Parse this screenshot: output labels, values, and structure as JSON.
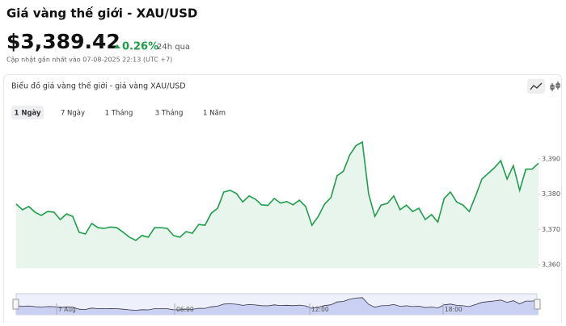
{
  "header": {
    "title": "Giá vàng thế giới - XAU/USD",
    "price": "$3,389.42",
    "change": "0.26%",
    "period": "24h qua",
    "updated": "Cập nhật gần nhất vào 07-08-2025 22:13 (UTC +7)"
  },
  "card": {
    "title": "Biểu đồ giá vàng thế giới - giá vàng XAU/USD",
    "tabs": [
      "1 Ngày",
      "7 Ngày",
      "1 Tháng",
      "3 Tháng",
      "1 Năm"
    ],
    "active_tab": 0
  },
  "chart_data": {
    "type": "area",
    "color": "#1e9e4a",
    "values": [
      3377.2,
      3375.6,
      3376.5,
      3374.9,
      3374.0,
      3375.1,
      3374.9,
      3372.8,
      3374.4,
      3373.7,
      3369.2,
      3368.7,
      3371.7,
      3370.5,
      3370.3,
      3370.7,
      3370.5,
      3369.2,
      3367.8,
      3366.9,
      3368.3,
      3367.8,
      3370.5,
      3370.5,
      3370.3,
      3368.3,
      3367.8,
      3369.4,
      3368.9,
      3371.4,
      3371.2,
      3374.6,
      3376.0,
      3380.6,
      3381.1,
      3380.2,
      3377.8,
      3379.5,
      3378.6,
      3377.0,
      3376.8,
      3378.8,
      3377.5,
      3377.9,
      3377.0,
      3378.3,
      3376.5,
      3371.2,
      3373.7,
      3377.2,
      3379.0,
      3385.2,
      3386.5,
      3391.1,
      3393.8,
      3394.8,
      3380.1,
      3373.7,
      3376.9,
      3377.4,
      3379.5,
      3375.6,
      3376.9,
      3375.1,
      3376.0,
      3372.8,
      3374.2,
      3372.1,
      3378.8,
      3380.6,
      3377.8,
      3376.9,
      3375.1,
      3379.5,
      3384.3,
      3385.9,
      3387.5,
      3389.5,
      3384.3,
      3388.1,
      3381.1,
      3387.1,
      3387.1,
      3388.8
    ],
    "ylim": [
      3359,
      3398
    ],
    "yticks": [
      {
        "value": 3360,
        "label": "3,360"
      },
      {
        "value": 3370,
        "label": "3,370"
      },
      {
        "value": 3380,
        "label": "3,380"
      },
      {
        "value": 3390,
        "label": "3,390"
      }
    ],
    "navigator_labels": [
      "7 Aug",
      "06:00",
      "12:00",
      "18:00"
    ]
  }
}
